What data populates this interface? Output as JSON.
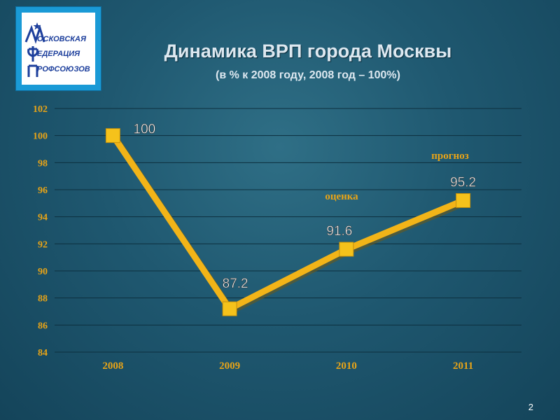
{
  "logo": {
    "lines": [
      "ОСКОВСКАЯ",
      "ЕДЕРАЦИЯ",
      "РОФСОЮЗОВ"
    ]
  },
  "title": "Динамика ВРП города Москвы",
  "subtitle": "(в % к 2008 году, 2008 год – 100%)",
  "page_number": "2",
  "colors": {
    "line": "#f2b418",
    "marker": "#f5c21b",
    "tick_text": "#e8a417",
    "annotation": "#e8a417",
    "grid": "#0d2f3e"
  },
  "chart_data": {
    "type": "line",
    "categories": [
      "2008",
      "2009",
      "2010",
      "2011"
    ],
    "series": [
      {
        "values": [
          100,
          87.2,
          91.6,
          95.2
        ],
        "labels": [
          "100",
          "87.2",
          "91.6",
          "95.2"
        ]
      }
    ],
    "ylim": [
      84,
      102
    ],
    "yticks": [
      84,
      86,
      88,
      90,
      92,
      94,
      96,
      98,
      100,
      102
    ],
    "grid": true,
    "xlabel": "",
    "ylabel": "",
    "annotations": [
      {
        "text": "оценка",
        "category": "2010"
      },
      {
        "text": "прогноз",
        "category": "2011"
      }
    ]
  }
}
